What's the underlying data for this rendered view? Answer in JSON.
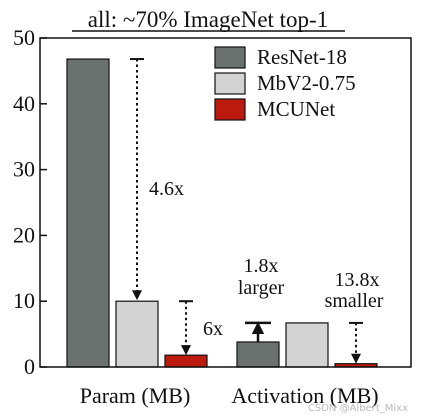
{
  "chart_data": {
    "type": "bar",
    "title": "all: ~70% ImageNet top-1",
    "categories": [
      "Param (MB)",
      "Activation (MB)"
    ],
    "series": [
      {
        "name": "ResNet-18",
        "color": "#6b716e",
        "values": [
          46.8,
          3.8
        ]
      },
      {
        "name": "MbV2-0.75",
        "color": "#d3d3d3",
        "values": [
          10.0,
          6.7
        ]
      },
      {
        "name": "MCUNet",
        "color": "#bd1a0f",
        "values": [
          1.8,
          0.5
        ]
      }
    ],
    "ylim": [
      0,
      50
    ],
    "yticks": [
      "0",
      "10",
      "20",
      "30",
      "40",
      "50"
    ],
    "legend_position": "top-right",
    "annotations": [
      {
        "id": "param-mbv2-vs-resnet",
        "text": "4.6x",
        "from_value": 46.8,
        "to_value": 10.0
      },
      {
        "id": "param-mcunet-vs-mbv2",
        "text": "6x",
        "from_value": 10.0,
        "to_value": 1.8
      },
      {
        "id": "act-mbv2-vs-resnet",
        "line1": "1.8x",
        "line2": "larger",
        "from_value": 3.8,
        "to_value": 6.7
      },
      {
        "id": "act-mcunet-vs-mbv2",
        "line1": "13.8x",
        "line2": "smaller",
        "from_value": 6.7,
        "to_value": 0.5
      }
    ]
  },
  "watermark": "CSDN @Albert_Mixx"
}
